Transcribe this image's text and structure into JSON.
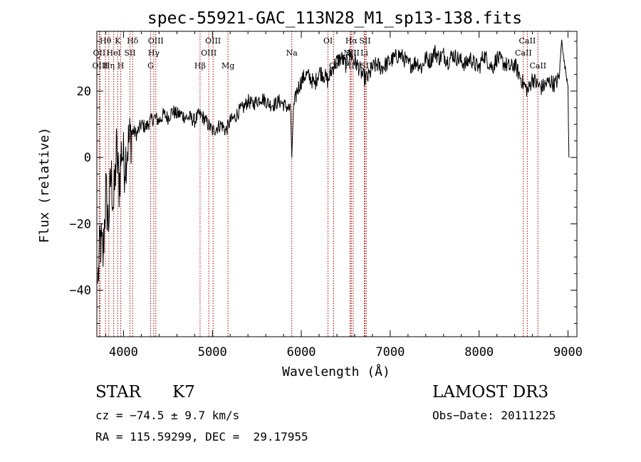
{
  "chart_data": {
    "type": "line",
    "title": "spec-55921-GAC_113N28_M1_sp13-138.fits",
    "xlabel": "Wavelength (Å)",
    "ylabel": "Flux (relative)",
    "xlim": [
      3700,
      9100
    ],
    "ylim": [
      -54,
      38
    ],
    "x_ticks": [
      4000,
      5000,
      6000,
      7000,
      8000,
      9000
    ],
    "x_tick_labels": [
      "4000",
      "5000",
      "6000",
      "7000",
      "8000",
      "9000"
    ],
    "y_ticks": [
      -40,
      -20,
      0,
      20
    ],
    "y_tick_labels": [
      "−40",
      "−20",
      "0",
      "20"
    ],
    "grid": false,
    "series": [
      {
        "name": "flux",
        "x": [
          3710,
          3740,
          3770,
          3800,
          3830,
          3860,
          3890,
          3920,
          3950,
          3980,
          4010,
          4050,
          4100,
          4150,
          4200,
          4250,
          4300,
          4350,
          4400,
          4450,
          4500,
          4550,
          4600,
          4650,
          4700,
          4750,
          4800,
          4850,
          4900,
          4950,
          5000,
          5050,
          5100,
          5150,
          5200,
          5250,
          5300,
          5350,
          5400,
          5450,
          5500,
          5550,
          5600,
          5650,
          5700,
          5750,
          5800,
          5850,
          5880,
          5893,
          5910,
          5950,
          6000,
          6050,
          6100,
          6150,
          6200,
          6250,
          6300,
          6350,
          6400,
          6450,
          6500,
          6550,
          6600,
          6650,
          6700,
          6750,
          6800,
          6850,
          6900,
          6950,
          7000,
          7050,
          7100,
          7150,
          7200,
          7250,
          7300,
          7350,
          7400,
          7450,
          7500,
          7550,
          7600,
          7650,
          7700,
          7750,
          7800,
          7850,
          7900,
          7950,
          8000,
          8050,
          8100,
          8150,
          8200,
          8250,
          8300,
          8350,
          8400,
          8450,
          8500,
          8550,
          8600,
          8650,
          8700,
          8750,
          8800,
          8850,
          8900,
          8930,
          8950,
          8980,
          9000,
          9010
        ],
        "y": [
          -38,
          -25,
          -30,
          -10,
          -20,
          -5,
          -15,
          2,
          -8,
          3,
          -2,
          4,
          8,
          7,
          10,
          9,
          11,
          12,
          11,
          13,
          12,
          14,
          13,
          13,
          12,
          12,
          11,
          13,
          12,
          10,
          8,
          9,
          10,
          8,
          11,
          12,
          14,
          15,
          17,
          16,
          17,
          18,
          17,
          16,
          16,
          17,
          16,
          15,
          14,
          0,
          14,
          20,
          23,
          25,
          24,
          22,
          26,
          25,
          23,
          27,
          29,
          30,
          28,
          31,
          29,
          27,
          24,
          24,
          27,
          28,
          27,
          28,
          29,
          30,
          31,
          30,
          28,
          28,
          29,
          27,
          30,
          29,
          32,
          30,
          31,
          29,
          31,
          30,
          29,
          28,
          30,
          28,
          27,
          31,
          29,
          27,
          30,
          29,
          28,
          27,
          28,
          25,
          22,
          20,
          24,
          22,
          21,
          22,
          23,
          22,
          24,
          36,
          30,
          25,
          22,
          0
        ]
      }
    ],
    "line_markers": [
      {
        "label": "Hθ",
        "x": 3797,
        "row": 0
      },
      {
        "label": "OII",
        "x": 3727,
        "row": 1
      },
      {
        "label": "OIII",
        "x": 3736,
        "row": 2
      },
      {
        "label": "K",
        "x": 3934,
        "row": 0
      },
      {
        "label": "Hδ",
        "x": 4102,
        "row": 0
      },
      {
        "label": "HeI",
        "x": 3889,
        "row": 1
      },
      {
        "label": "SII",
        "x": 4072,
        "row": 1
      },
      {
        "label": "Hη",
        "x": 3835,
        "row": 2
      },
      {
        "label": "H",
        "x": 3969,
        "row": 2
      },
      {
        "label": "OIII",
        "x": 4363,
        "row": 0
      },
      {
        "label": "Hγ",
        "x": 4340,
        "row": 1
      },
      {
        "label": "G",
        "x": 4305,
        "row": 2
      },
      {
        "label": "OIII",
        "x": 5007,
        "row": 0
      },
      {
        "label": "OIII",
        "x": 4959,
        "row": 1
      },
      {
        "label": "Hβ",
        "x": 4861,
        "row": 2
      },
      {
        "label": "Mg",
        "x": 5175,
        "row": 2
      },
      {
        "label": "Na",
        "x": 5893,
        "row": 1
      },
      {
        "label": "OI",
        "x": 6300,
        "row": 0
      },
      {
        "label": "OI",
        "x": 6364,
        "row": 2
      },
      {
        "label": "Hα",
        "x": 6563,
        "row": 0
      },
      {
        "label": "SII",
        "x": 6716,
        "row": 0
      },
      {
        "label": "NII",
        "x": 6548,
        "row": 1
      },
      {
        "label": "NII",
        "x": 6583,
        "row": 1
      },
      {
        "label": "Li",
        "x": 6708,
        "row": 1
      },
      {
        "label": "HII",
        "x": 6560,
        "row": 2
      },
      {
        "label": "SII",
        "x": 6731,
        "row": 2
      },
      {
        "label": "CaII",
        "x": 8542,
        "row": 0
      },
      {
        "label": "CaII",
        "x": 8498,
        "row": 1
      },
      {
        "label": "CaII",
        "x": 8662,
        "row": 2
      }
    ]
  },
  "info": {
    "class_label": "STAR",
    "subclass": "K7",
    "survey": "LAMOST DR3",
    "cz": "cz = −74.5 ± 9.7 km/s",
    "obs_date": "Obs−Date: 20111225",
    "coords": "RA = 115.59299, DEC =  29.17955"
  },
  "colors": {
    "line": "#000000",
    "marker": "#b30000",
    "axis": "#000000"
  }
}
